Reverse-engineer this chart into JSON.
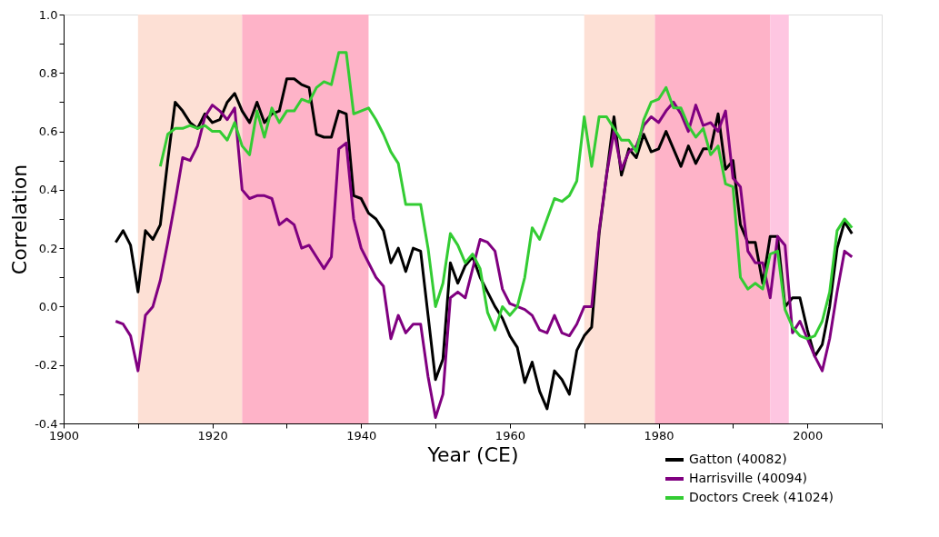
{
  "chart_data": {
    "type": "line",
    "xlabel": "Year (CE)",
    "ylabel": "Correlation",
    "xlim": [
      1900,
      2010
    ],
    "ylim": [
      -0.4,
      1.0
    ],
    "xticks": [
      1900,
      {
        "value": 1910,
        "label": null
      },
      1920,
      {
        "value": 1930,
        "label": null
      },
      1940,
      {
        "value": 1950,
        "label": null
      },
      1960,
      {
        "value": 1970,
        "label": null
      },
      1980,
      {
        "value": 1990,
        "label": null
      },
      2000,
      {
        "value": 2010,
        "label": null
      }
    ],
    "yticks": [
      {
        "value": -0.4,
        "label": "-0.4"
      },
      {
        "value": -0.3,
        "label": null
      },
      {
        "value": -0.2,
        "label": "-0.2"
      },
      {
        "value": -0.1,
        "label": null
      },
      {
        "value": 0,
        "label": "0.0"
      },
      {
        "value": 0.1,
        "label": null
      },
      {
        "value": 0.2,
        "label": "0.2"
      },
      {
        "value": 0.3,
        "label": null
      },
      {
        "value": 0.4,
        "label": "0.4"
      },
      {
        "value": 0.5,
        "label": null
      },
      {
        "value": 0.6,
        "label": "0.6"
      },
      {
        "value": 0.7,
        "label": null
      },
      {
        "value": 0.8,
        "label": "0.8"
      },
      {
        "value": 0.9,
        "label": null
      },
      {
        "value": 1.0,
        "label": "1.0"
      }
    ],
    "grid": false,
    "legend": "bottom right",
    "marker": "none",
    "line_style": "solid",
    "bands": [
      {
        "axis": "x",
        "from": 1910,
        "to": 1924,
        "color": "#fde0d5"
      },
      {
        "axis": "x",
        "from": 1924,
        "to": 1941,
        "color": "#feb3c8"
      },
      {
        "axis": "x",
        "from": 1970,
        "to": 1979.5,
        "color": "#fde0d5"
      },
      {
        "axis": "x",
        "from": 1979.5,
        "to": 1995,
        "color": "#feb3c8"
      },
      {
        "axis": "x",
        "from": 1995,
        "to": 1997.5,
        "color": "#fec6e1"
      }
    ],
    "series": [
      {
        "name": "Gatton (40082)",
        "color": "#000000",
        "x": [
          1907,
          1908,
          1909,
          1910,
          1911,
          1912,
          1913,
          1914,
          1915,
          1916,
          1917,
          1918,
          1919,
          1920,
          1921,
          1922,
          1923,
          1924,
          1925,
          1926,
          1927,
          1928,
          1929,
          1930,
          1931,
          1932,
          1933,
          1934,
          1935,
          1936,
          1937,
          1938,
          1939,
          1940,
          1941,
          1942,
          1943,
          1944,
          1945,
          1946,
          1947,
          1948,
          1949,
          1950,
          1951,
          1952,
          1953,
          1954,
          1955,
          1956,
          1957,
          1958,
          1959,
          1960,
          1961,
          1962,
          1963,
          1964,
          1965,
          1966,
          1967,
          1968,
          1969,
          1970,
          1971,
          1972,
          1973,
          1974,
          1975,
          1976,
          1977,
          1978,
          1979,
          1980,
          1981,
          1982,
          1983,
          1984,
          1985,
          1986,
          1987,
          1988,
          1989,
          1990,
          1991,
          1992,
          1993,
          1994,
          1995,
          1996,
          1997,
          1998,
          1999,
          2000,
          2001,
          2002,
          2003,
          2004,
          2005,
          2006
        ],
        "values": [
          0.22,
          0.26,
          0.21,
          0.05,
          0.26,
          0.23,
          0.28,
          0.5,
          0.7,
          0.67,
          0.63,
          0.61,
          0.66,
          0.63,
          0.64,
          0.7,
          0.73,
          0.67,
          0.63,
          0.7,
          0.63,
          0.66,
          0.67,
          0.78,
          0.78,
          0.76,
          0.75,
          0.59,
          0.58,
          0.58,
          0.67,
          0.66,
          0.38,
          0.37,
          0.32,
          0.3,
          0.26,
          0.15,
          0.2,
          0.12,
          0.2,
          0.19,
          -0.03,
          -0.25,
          -0.18,
          0.15,
          0.08,
          0.14,
          0.17,
          0.1,
          0.05,
          0.0,
          -0.04,
          -0.1,
          -0.14,
          -0.26,
          -0.19,
          -0.29,
          -0.35,
          -0.22,
          -0.25,
          -0.3,
          -0.15,
          -0.1,
          -0.07,
          0.25,
          0.45,
          0.65,
          0.45,
          0.54,
          0.51,
          0.59,
          0.53,
          0.54,
          0.6,
          0.54,
          0.48,
          0.55,
          0.49,
          0.54,
          0.54,
          0.66,
          0.47,
          0.5,
          0.28,
          0.22,
          0.22,
          0.08,
          0.24,
          0.24,
          0.0,
          0.03,
          0.03,
          -0.08,
          -0.17,
          -0.13,
          0.0,
          0.2,
          0.29,
          0.25
        ]
      },
      {
        "name": "Harrisville (40094)",
        "color": "#800080",
        "x": [
          1907,
          1908,
          1909,
          1910,
          1911,
          1912,
          1913,
          1914,
          1915,
          1916,
          1917,
          1918,
          1919,
          1920,
          1921,
          1922,
          1923,
          1924,
          1925,
          1926,
          1927,
          1928,
          1929,
          1930,
          1931,
          1932,
          1933,
          1934,
          1935,
          1936,
          1937,
          1938,
          1939,
          1940,
          1941,
          1942,
          1943,
          1944,
          1945,
          1946,
          1947,
          1948,
          1949,
          1950,
          1951,
          1952,
          1953,
          1954,
          1955,
          1956,
          1957,
          1958,
          1959,
          1960,
          1961,
          1962,
          1963,
          1964,
          1965,
          1966,
          1967,
          1968,
          1969,
          1970,
          1971,
          1972,
          1973,
          1974,
          1975,
          1976,
          1977,
          1978,
          1979,
          1980,
          1981,
          1982,
          1983,
          1984,
          1985,
          1986,
          1987,
          1988,
          1989,
          1990,
          1991,
          1992,
          1993,
          1994,
          1995,
          1996,
          1997,
          1998,
          1999,
          2000,
          2001,
          2002,
          2003,
          2004,
          2005,
          2006
        ],
        "values": [
          -0.05,
          -0.06,
          -0.1,
          -0.22,
          -0.03,
          0.0,
          0.09,
          0.22,
          0.36,
          0.51,
          0.5,
          0.55,
          0.65,
          0.69,
          0.67,
          0.64,
          0.68,
          0.4,
          0.37,
          0.38,
          0.38,
          0.37,
          0.28,
          0.3,
          0.28,
          0.2,
          0.21,
          0.17,
          0.13,
          0.17,
          0.54,
          0.56,
          0.3,
          0.2,
          0.15,
          0.1,
          0.07,
          -0.11,
          -0.03,
          -0.09,
          -0.06,
          -0.06,
          -0.24,
          -0.38,
          -0.3,
          0.03,
          0.05,
          0.03,
          0.13,
          0.23,
          0.22,
          0.19,
          0.06,
          0.01,
          0.0,
          -0.01,
          -0.03,
          -0.08,
          -0.09,
          -0.03,
          -0.09,
          -0.1,
          -0.06,
          0.0,
          0.0,
          0.26,
          0.45,
          0.6,
          0.47,
          0.53,
          0.55,
          0.62,
          0.65,
          0.63,
          0.67,
          0.7,
          0.66,
          0.6,
          0.69,
          0.62,
          0.63,
          0.6,
          0.67,
          0.44,
          0.41,
          0.19,
          0.15,
          0.15,
          0.03,
          0.24,
          0.21,
          -0.09,
          -0.05,
          -0.11,
          -0.17,
          -0.22,
          -0.11,
          0.05,
          0.19,
          0.17
        ]
      },
      {
        "name": "Doctors Creek (41024)",
        "color": "#33cc33",
        "x": [
          1913,
          1914,
          1915,
          1916,
          1917,
          1918,
          1919,
          1920,
          1921,
          1922,
          1923,
          1924,
          1925,
          1926,
          1927,
          1928,
          1929,
          1930,
          1931,
          1932,
          1933,
          1934,
          1935,
          1936,
          1937,
          1938,
          1939,
          1940,
          1941,
          1942,
          1943,
          1944,
          1945,
          1946,
          1947,
          1948,
          1949,
          1950,
          1951,
          1952,
          1953,
          1954,
          1955,
          1956,
          1957,
          1958,
          1959,
          1960,
          1961,
          1962,
          1963,
          1964,
          1965,
          1966,
          1967,
          1968,
          1969,
          1970,
          1971,
          1972,
          1973,
          1974,
          1975,
          1976,
          1977,
          1978,
          1979,
          1980,
          1981,
          1982,
          1983,
          1984,
          1985,
          1986,
          1987,
          1988,
          1989,
          1990,
          1991,
          1992,
          1993,
          1994,
          1995,
          1996,
          1997,
          1998,
          1999,
          2000,
          2001,
          2002,
          2003,
          2004,
          2005,
          2006
        ],
        "values": [
          0.48,
          0.59,
          0.61,
          0.61,
          0.62,
          0.61,
          0.62,
          0.6,
          0.6,
          0.57,
          0.63,
          0.55,
          0.52,
          0.67,
          0.58,
          0.68,
          0.63,
          0.67,
          0.67,
          0.71,
          0.7,
          0.75,
          0.77,
          0.76,
          0.87,
          0.87,
          0.66,
          0.67,
          0.68,
          0.64,
          0.59,
          0.53,
          0.49,
          0.35,
          0.35,
          0.35,
          0.2,
          0.0,
          0.08,
          0.25,
          0.21,
          0.15,
          0.18,
          0.13,
          -0.02,
          -0.08,
          0.0,
          -0.03,
          0.0,
          0.1,
          0.27,
          0.23,
          0.3,
          0.37,
          0.36,
          0.38,
          0.43,
          0.65,
          0.48,
          0.65,
          0.65,
          0.61,
          0.57,
          0.57,
          0.53,
          0.64,
          0.7,
          0.71,
          0.75,
          0.68,
          0.68,
          0.62,
          0.58,
          0.61,
          0.52,
          0.55,
          0.42,
          0.41,
          0.1,
          0.06,
          0.08,
          0.06,
          0.18,
          0.19,
          -0.01,
          -0.07,
          -0.1,
          -0.11,
          -0.1,
          -0.05,
          0.05,
          0.26,
          0.3,
          0.27
        ]
      }
    ]
  }
}
